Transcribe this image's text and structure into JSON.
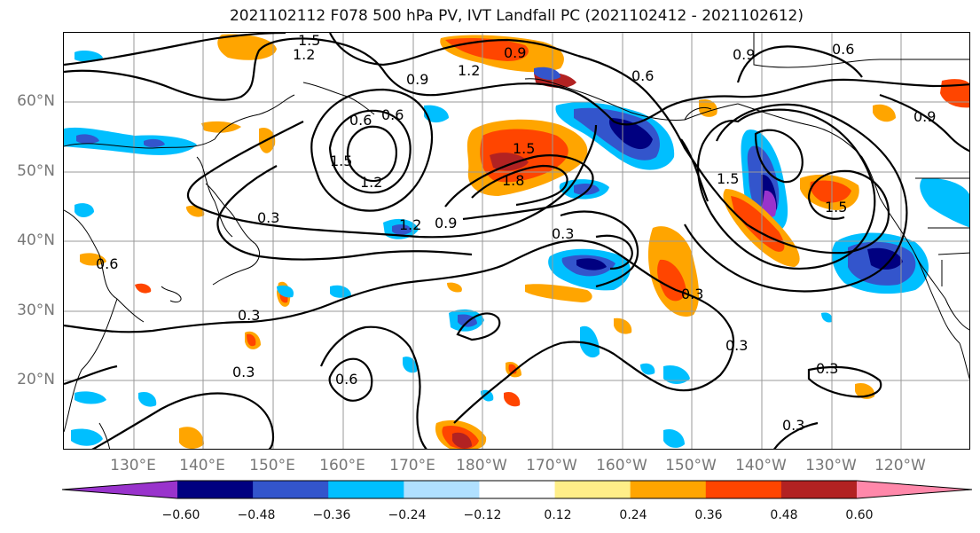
{
  "title": "2021102112 F078 500 hPa PV, IVT Landfall PC (2021102412 - 2021102612)",
  "lat_labels": [
    "60°N",
    "50°N",
    "40°N",
    "30°N",
    "20°N"
  ],
  "lon_labels": [
    "130°E",
    "140°E",
    "150°E",
    "160°E",
    "170°E",
    "180°W",
    "170°W",
    "160°W",
    "150°W",
    "140°W",
    "130°W",
    "120°W"
  ],
  "contour_labels": {
    "c1": "1.5",
    "c2": "1.2",
    "c3": "0.9",
    "c4": "0.6",
    "c5": "0.9",
    "c6": "0.6",
    "c7": "0.6",
    "c8": "1.2",
    "c9": "1.5",
    "c10": "0.6",
    "c11": "0.9",
    "c12": "1.2",
    "c13": "1.5",
    "c14": "1.8",
    "c15": "0.3",
    "c16": "1.2",
    "c17": "0.9",
    "c18": "0.3",
    "c19": "1.5",
    "c20": "1.5",
    "c21": "0.3",
    "c22": "0.3",
    "c23": "0.3",
    "c24": "0.6",
    "c25": "0.3",
    "c26": "0.3",
    "c27": "0.3",
    "c28": "0.6",
    "c29": "0.9"
  },
  "colorbar": {
    "ticks": [
      "−0.60",
      "−0.48",
      "−0.36",
      "−0.24",
      "−0.12",
      "0.12",
      "0.24",
      "0.36",
      "0.48",
      "0.60"
    ],
    "colors": [
      "#9933cc",
      "#000080",
      "#3355cc",
      "#00bfff",
      "#b0e0ff",
      "#ffffff",
      "#ffee88",
      "#ffa500",
      "#ff4500",
      "#b22222",
      "#ff88aa"
    ]
  },
  "colors": {
    "purple": "#9933cc",
    "navy": "#000080",
    "blue": "#3355cc",
    "cyan": "#00bfff",
    "light_blue": "#b0e0ff",
    "yellow": "#ffee88",
    "orange": "#ffa500",
    "red_orange": "#ff4500",
    "dark_red": "#b22222",
    "pink": "#ff88aa"
  }
}
